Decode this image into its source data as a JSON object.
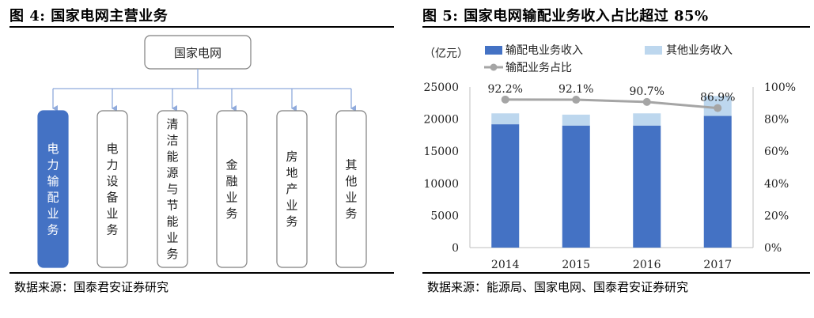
{
  "left_panel": {
    "title": "图 4:  国家电网主营业务",
    "root_label": "国家电网",
    "businesses": [
      "电力输配业务",
      "电力设备业务",
      "清洁能源与节能业务",
      "金融业务",
      "房地产业务",
      "其他业务"
    ],
    "highlight_index": 0,
    "highlight_color": "#4472C4",
    "line_color": "#8FAADC",
    "source": "数据来源：国泰君安证券研究"
  },
  "right_panel": {
    "title": "图 5:  国家电网输配业务收入占比超过 85%",
    "source": "数据来源：能源局、国家电网、国泰君安证券研究"
  },
  "chart_data": {
    "type": "bar",
    "stacked": true,
    "categories": [
      "2014",
      "2015",
      "2016",
      "2017"
    ],
    "series": [
      {
        "name": "输配电业务收入",
        "values": [
          19200,
          19000,
          19000,
          20500
        ],
        "color": "#4472C4"
      },
      {
        "name": "其他业务收入",
        "values": [
          1700,
          1700,
          1900,
          3100
        ],
        "color": "#BDD7EE"
      }
    ],
    "line_series": {
      "name": "输配业务占比",
      "values": [
        92.2,
        92.1,
        90.7,
        86.9
      ],
      "labels": [
        "92.2%",
        "92.1%",
        "90.7%",
        "86.9%"
      ],
      "color": "#A5A5A5"
    },
    "y_unit_label": "（亿元）",
    "ylim": [
      0,
      25000
    ],
    "y_ticks": [
      "0",
      "5000",
      "10000",
      "15000",
      "20000",
      "25000"
    ],
    "y2lim": [
      0,
      100
    ],
    "y2_ticks": [
      "0%",
      "20%",
      "40%",
      "60%",
      "80%",
      "100%"
    ],
    "legend_position": "top",
    "grid": false
  }
}
